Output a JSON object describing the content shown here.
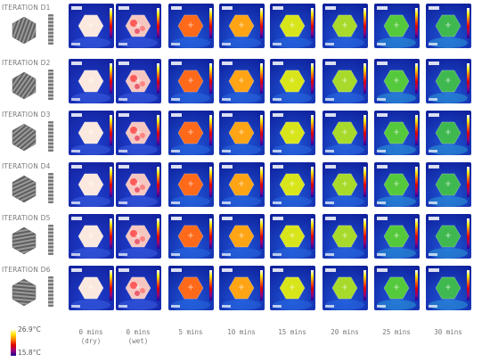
{
  "rows": [
    {
      "label": "ITERATION  D1"
    },
    {
      "label": "ITERATION  D2"
    },
    {
      "label": "ITERATION  D3"
    },
    {
      "label": "ITERATION  D4"
    },
    {
      "label": "ITERATION  D5"
    },
    {
      "label": "ITERATION  D6"
    }
  ],
  "columns": [
    {
      "line1": "0  mins",
      "line2": "(dry)"
    },
    {
      "line1": "0  mins",
      "line2": "(wet)"
    },
    {
      "line1": "5  mins",
      "line2": ""
    },
    {
      "line1": "10  mins",
      "line2": ""
    },
    {
      "line1": "15  mins",
      "line2": ""
    },
    {
      "line1": "20  mins",
      "line2": ""
    },
    {
      "line1": "25  mins",
      "line2": ""
    },
    {
      "line1": "30  mins",
      "line2": ""
    }
  ],
  "legend": {
    "max": "26.9°C",
    "min": "15.8°C"
  },
  "colors": {
    "background": "#1a2bb0",
    "hot": "#ffffff",
    "warm": "#ff5a00",
    "mid": "#7ed321",
    "cool": "#2a8fd0"
  },
  "hex_fill_by_column": [
    "#fbe9df",
    "#f6c7c0",
    "#ff6a1a",
    "#ffa414",
    "#d8e51a",
    "#a7da2a",
    "#55c93c",
    "#3fb94f"
  ]
}
